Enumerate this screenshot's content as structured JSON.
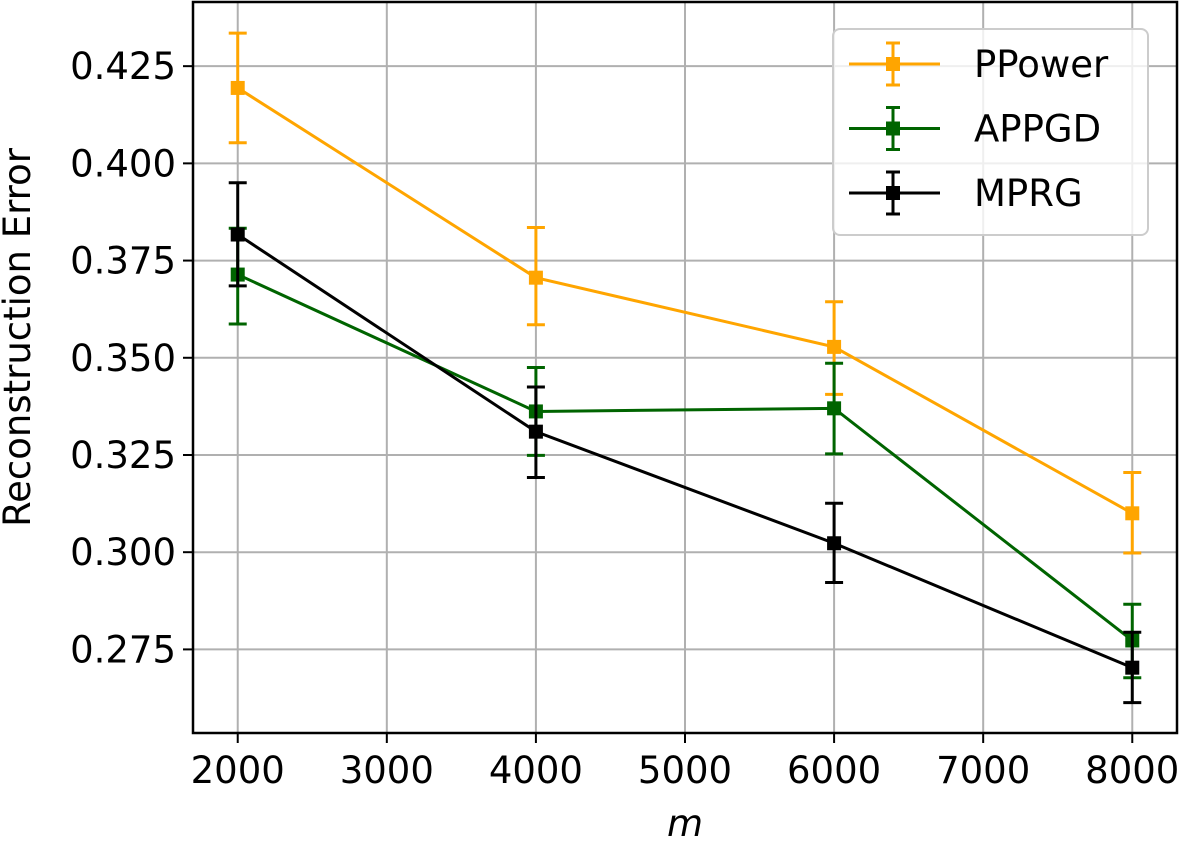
{
  "chart_data": {
    "type": "line",
    "title": "",
    "xlabel": "m",
    "ylabel": "Reconstruction Error",
    "x": [
      2000,
      4000,
      6000,
      8000
    ],
    "xticks": [
      2000,
      3000,
      4000,
      5000,
      6000,
      7000,
      8000
    ],
    "xtick_labels": [
      "2000",
      "3000",
      "4000",
      "5000",
      "6000",
      "7000",
      "8000"
    ],
    "yticks": [
      0.275,
      0.3,
      0.325,
      0.35,
      0.375,
      0.4,
      0.425
    ],
    "ytick_labels": [
      "0.275",
      "0.300",
      "0.325",
      "0.350",
      "0.375",
      "0.400",
      "0.425"
    ],
    "xlim": [
      1700,
      8300
    ],
    "ylim": [
      0.2535,
      0.4415
    ],
    "grid": true,
    "legend_position": "upper right",
    "error_bars": true,
    "series": [
      {
        "name": "PPower",
        "color": "#FFA500",
        "values": [
          0.4194,
          0.3706,
          0.3528,
          0.31
        ],
        "err_upper": [
          0.4335,
          0.3835,
          0.3644,
          0.3205
        ],
        "err_lower": [
          0.4053,
          0.3585,
          0.3406,
          0.2998
        ]
      },
      {
        "name": "APPGD",
        "color": "#006400",
        "values": [
          0.3714,
          0.3362,
          0.337,
          0.2773
        ],
        "err_upper": [
          0.3833,
          0.3475,
          0.3486,
          0.2866
        ],
        "err_lower": [
          0.3587,
          0.3249,
          0.3253,
          0.2677
        ]
      },
      {
        "name": "MPRG",
        "color": "#000000",
        "values": [
          0.3817,
          0.331,
          0.3023,
          0.2703
        ],
        "err_upper": [
          0.395,
          0.3425,
          0.3126,
          0.2794
        ],
        "err_lower": [
          0.3685,
          0.3192,
          0.2922,
          0.2613
        ]
      }
    ]
  }
}
